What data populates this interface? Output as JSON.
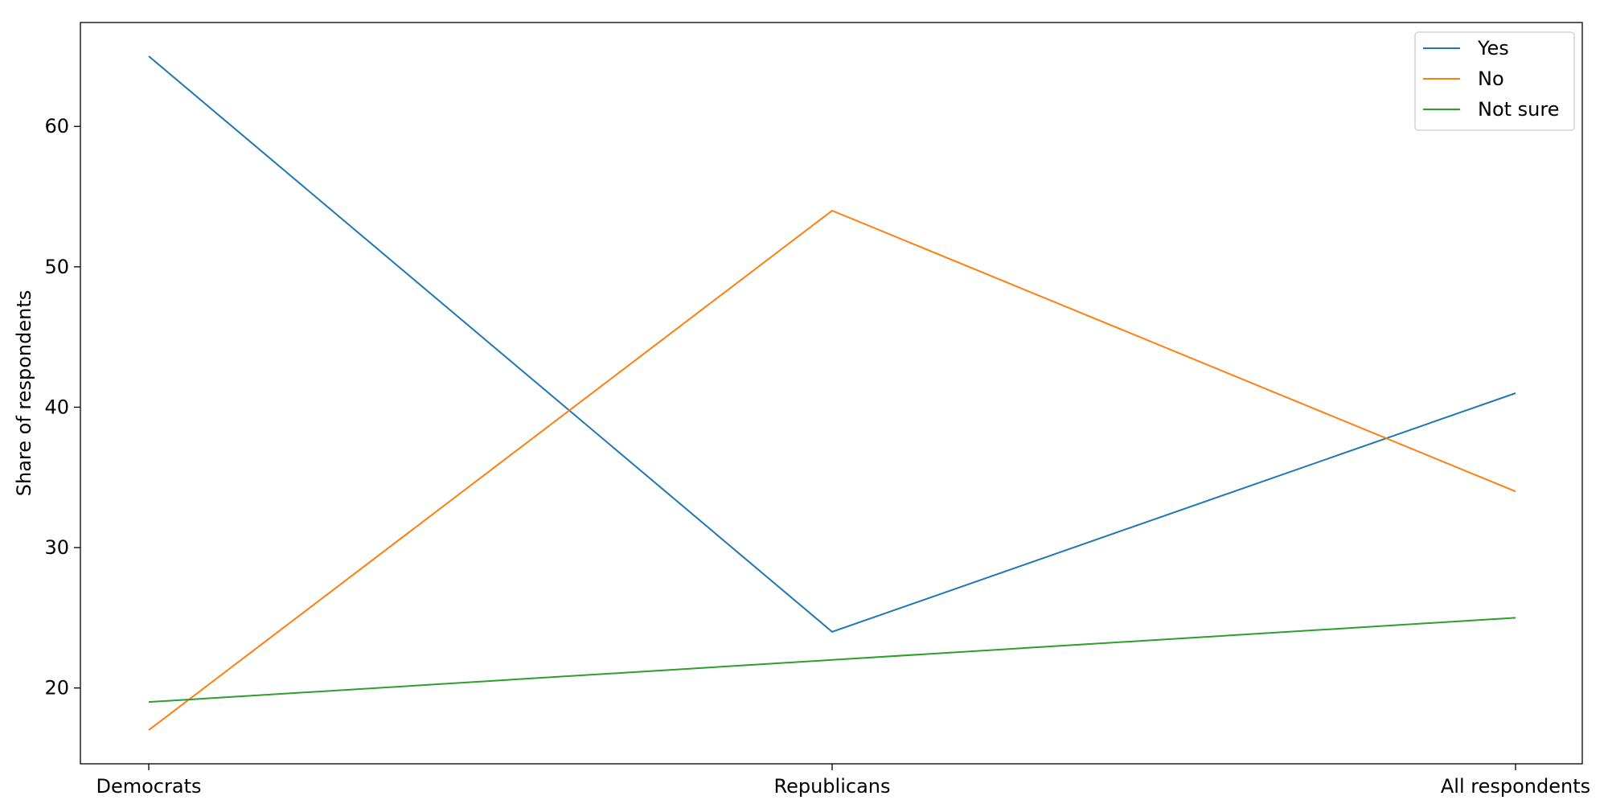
{
  "chart_data": {
    "type": "line",
    "title": "",
    "xlabel": "",
    "ylabel": "Share of respondents",
    "categories": [
      "Democrats",
      "Republicans",
      "All respondents"
    ],
    "series": [
      {
        "name": "Yes",
        "values": [
          65,
          24,
          41
        ],
        "color": "#1f77b4"
      },
      {
        "name": "No",
        "values": [
          17,
          54,
          34
        ],
        "color": "#ff7f0e"
      },
      {
        "name": "Not sure",
        "values": [
          19,
          22,
          25
        ],
        "color": "#2ca02c"
      }
    ],
    "yticks": [
      20,
      30,
      40,
      50,
      60
    ],
    "ylim": [
      14.6,
      67.4
    ],
    "grid": false,
    "legend_position": "top-right"
  }
}
